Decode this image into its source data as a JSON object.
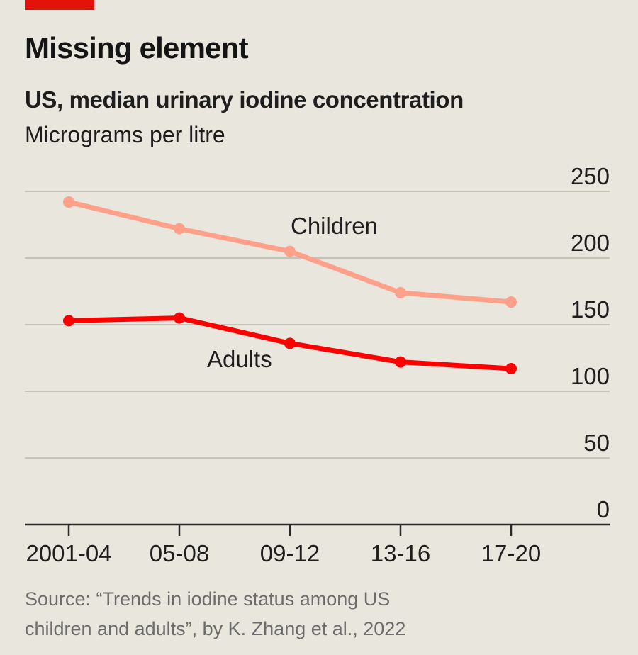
{
  "header": {
    "title": "Missing element",
    "subtitle": "US, median urinary iodine concentration",
    "unit": "Micrograms per litre"
  },
  "colors": {
    "accent": "#e3120b",
    "adults": "#ff0000",
    "children": "#ffa08a",
    "grid": "#c6c3b9",
    "axis": "#2a2a2a",
    "background": "#e9e6dd"
  },
  "chart_data": {
    "type": "line",
    "title": "US, median urinary iodine concentration",
    "subtitle": "Micrograms per litre",
    "categories": [
      "2001-04",
      "05-08",
      "09-12",
      "13-16",
      "17-20"
    ],
    "yticks": [
      0,
      50,
      100,
      150,
      200,
      250
    ],
    "ylim": [
      0,
      250
    ],
    "grid": true,
    "y_axis_side": "right",
    "series": [
      {
        "name": "Children",
        "values": [
          242,
          222,
          205,
          174,
          167
        ]
      },
      {
        "name": "Adults",
        "values": [
          153,
          155,
          136,
          122,
          117
        ]
      }
    ]
  },
  "source": {
    "line1": "Source: “Trends in iodine status among US",
    "line2": "children and adults”, by K. Zhang et al., 2022"
  }
}
